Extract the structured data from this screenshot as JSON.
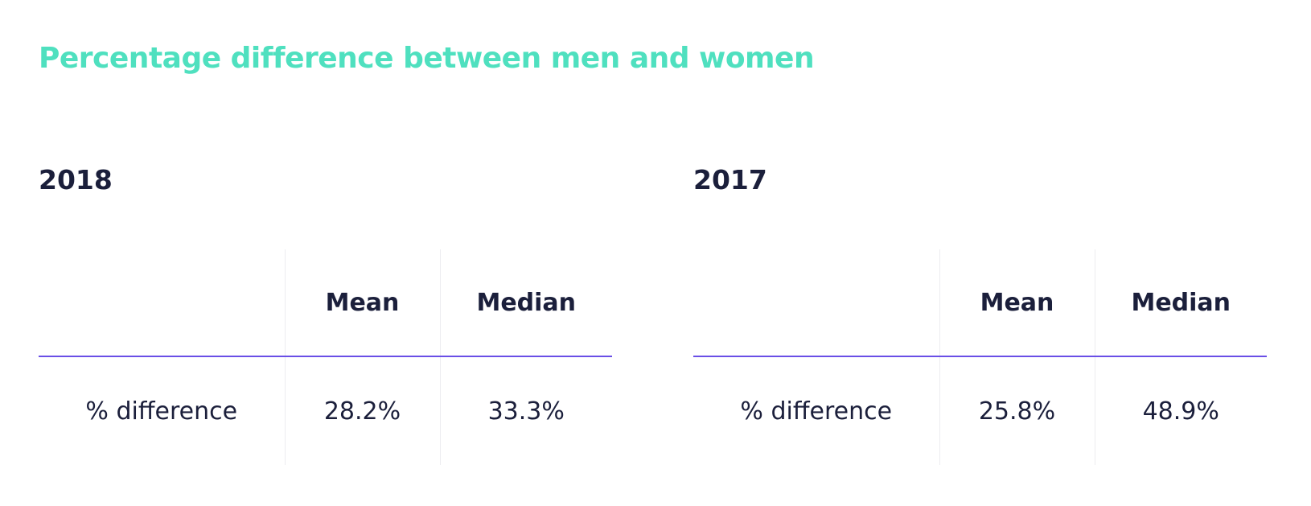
{
  "page": {
    "title": "Percentage difference between men and women"
  },
  "tables": [
    {
      "year": "2018",
      "headers": {
        "label": "",
        "mean": "Mean",
        "median": "Median"
      },
      "row": {
        "label": "% difference",
        "mean": "28.2%",
        "median": "33.3%"
      }
    },
    {
      "year": "2017",
      "headers": {
        "label": "",
        "mean": "Mean",
        "median": "Median"
      },
      "row": {
        "label": "% difference",
        "mean": "25.8%",
        "median": "48.9%"
      }
    }
  ],
  "colors": {
    "title": "#4fe0bf",
    "text": "#1b1f3b",
    "header_rule": "#6a4fe6",
    "column_divider": "#ececf0"
  }
}
